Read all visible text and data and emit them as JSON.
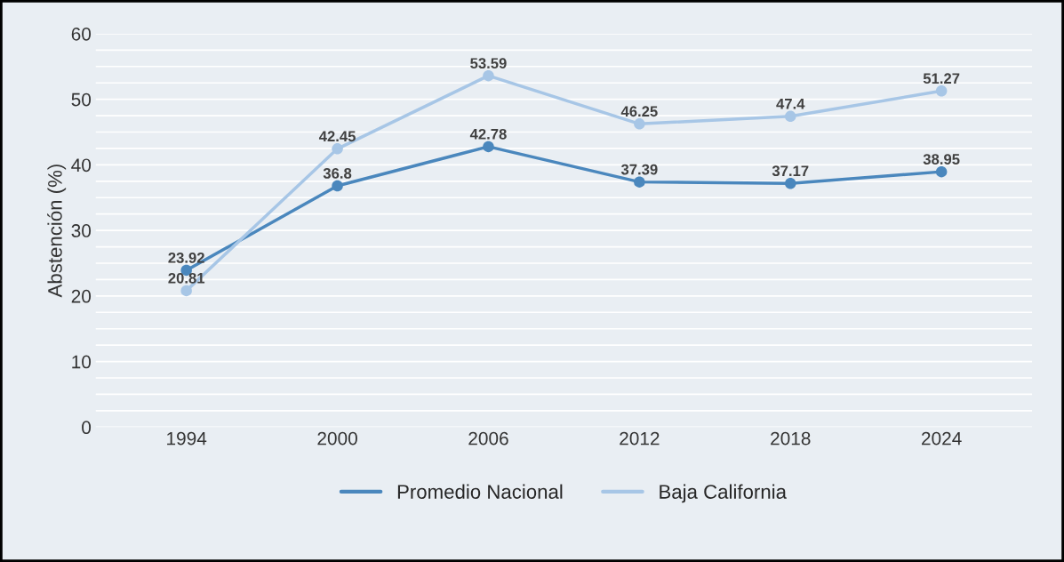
{
  "chart_data": {
    "type": "line",
    "ylabel": "Abstención (%)",
    "categories": [
      "1994",
      "2000",
      "2006",
      "2012",
      "2018",
      "2024"
    ],
    "series": [
      {
        "name": "Promedio Nacional",
        "color": "#4a87bd",
        "values": [
          23.92,
          36.8,
          42.78,
          37.39,
          37.17,
          38.95
        ]
      },
      {
        "name": "Baja California",
        "color": "#a7c6e6",
        "values": [
          20.81,
          42.45,
          53.59,
          46.25,
          47.4,
          51.27
        ]
      }
    ],
    "ylim": [
      0,
      60
    ],
    "yticks": [
      0,
      {
        "value": 2.5,
        "label": null
      },
      {
        "value": 5,
        "label": null
      },
      {
        "value": 7.5,
        "label": null
      },
      10,
      {
        "value": 12.5,
        "label": null
      },
      {
        "value": 15,
        "label": null
      },
      {
        "value": 17.5,
        "label": null
      },
      20,
      {
        "value": 22.5,
        "label": null
      },
      {
        "value": 25,
        "label": null
      },
      {
        "value": 27.5,
        "label": null
      },
      30,
      {
        "value": 32.5,
        "label": null
      },
      {
        "value": 35,
        "label": null
      },
      {
        "value": 37.5,
        "label": null
      },
      40,
      {
        "value": 42.5,
        "label": null
      },
      {
        "value": 45,
        "label": null
      },
      {
        "value": 47.5,
        "label": null
      },
      50,
      {
        "value": 52.5,
        "label": null
      },
      {
        "value": 55,
        "label": null
      },
      {
        "value": 57.5,
        "label": null
      },
      60
    ],
    "grid": "y",
    "legend": "bottom",
    "marker": "circle",
    "line_style": "solid",
    "data_labels": true
  }
}
